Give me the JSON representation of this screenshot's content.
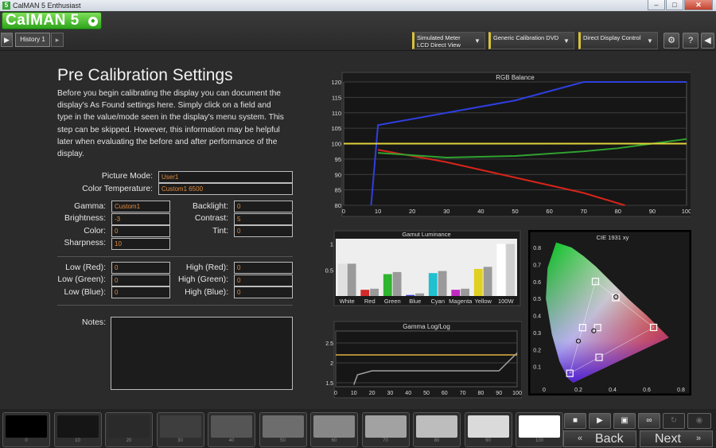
{
  "window": {
    "title": "CalMAN 5 Enthusiast",
    "icon_text": "5",
    "minimize": "–",
    "maximize": "□",
    "close": "✕"
  },
  "logo": {
    "text": "CalMAN 5",
    "mark": "●"
  },
  "tabs": {
    "back_glyph": "▶",
    "history": "History 1",
    "add_glyph": "▸"
  },
  "dropdowns": [
    {
      "line1": "Simulated Meter",
      "line2": "LCD Direct View"
    },
    {
      "line1": "Generic Calibration DVD",
      "line2": ""
    },
    {
      "line1": "Direct Display Control",
      "line2": ""
    }
  ],
  "toolbar": {
    "settings_glyph": "⚙",
    "help_glyph": "?",
    "collapse_glyph": "◀",
    "chev": "▼"
  },
  "page": {
    "title": "Pre Calibration Settings",
    "description": "Before you begin calibrating the display you can document the display's As Found settings here. Simply click on a field and type in the value/mode seen in the display's menu system. This step can be skipped. However, this information may be helpful later when evaluating the before and after performance of the display."
  },
  "fields": {
    "picture_mode": {
      "label": "Picture Mode:",
      "value": "User1"
    },
    "color_temperature": {
      "label": "Color Temperature:",
      "value": "Custom1 6500"
    },
    "gamma": {
      "label": "Gamma:",
      "value": "Custom1"
    },
    "brightness": {
      "label": "Brightness:",
      "value": "-3"
    },
    "color": {
      "label": "Color:",
      "value": "0"
    },
    "sharpness": {
      "label": "Sharpness:",
      "value": "10"
    },
    "backlight": {
      "label": "Backlight:",
      "value": "0"
    },
    "contrast": {
      "label": "Contrast:",
      "value": "5"
    },
    "tint": {
      "label": "Tint:",
      "value": "0"
    },
    "low_red": {
      "label": "Low (Red):",
      "value": "0"
    },
    "low_green": {
      "label": "Low (Green):",
      "value": "0"
    },
    "low_blue": {
      "label": "Low (Blue):",
      "value": "0"
    },
    "high_red": {
      "label": "High (Red):",
      "value": "0"
    },
    "high_green": {
      "label": "High (Green):",
      "value": "0"
    },
    "high_blue": {
      "label": "High (Blue):",
      "value": "0"
    },
    "notes": {
      "label": "Notes:",
      "value": ""
    }
  },
  "chart_data": [
    {
      "type": "line",
      "title": "RGB Balance",
      "xlim": [
        0,
        100
      ],
      "ylim": [
        80,
        120
      ],
      "x_ticks": [
        0,
        10,
        20,
        30,
        40,
        50,
        60,
        70,
        80,
        90,
        100
      ],
      "y_ticks": [
        80,
        85,
        90,
        95,
        100,
        105,
        110,
        115,
        120
      ],
      "grid": true,
      "series": [
        {
          "color": "#2f3fe0",
          "x": [
            8,
            10,
            30,
            50,
            70,
            100
          ],
          "y": [
            80,
            106,
            110,
            114,
            120,
            120
          ]
        },
        {
          "color": "#d8241a",
          "x": [
            10,
            30,
            50,
            70,
            82
          ],
          "y": [
            98,
            94,
            89,
            84,
            80
          ]
        },
        {
          "color": "#2fa42f",
          "x": [
            10,
            30,
            50,
            70,
            80,
            90,
            100
          ],
          "y": [
            97,
            95.5,
            96,
            97.5,
            98.5,
            100,
            101.5
          ]
        },
        {
          "color": "#e0d23a",
          "x": [
            0,
            100
          ],
          "y": [
            100,
            100
          ]
        }
      ]
    },
    {
      "type": "bar",
      "title": "Gamut Luminance",
      "categories": [
        "White",
        "Red",
        "Green",
        "Blue",
        "Cyan",
        "Magenta",
        "Yellow",
        "100W"
      ],
      "ylim": [
        0,
        1.1
      ],
      "y_ticks": [
        0.5,
        1
      ],
      "y_tick_labels": [
        "0.5",
        "1"
      ],
      "series": [
        {
          "values": [
            0.62,
            0.12,
            0.42,
            0.02,
            0.44,
            0.12,
            0.52,
            1.0
          ],
          "colors": [
            "#e0e0e0",
            "#d22a2a",
            "#2fb52f",
            "#3a3ad0",
            "#20c0d0",
            "#c02ac0",
            "#e0d020",
            "#ffffff"
          ]
        },
        {
          "values": [
            0.62,
            0.14,
            0.46,
            0.05,
            0.48,
            0.14,
            0.56,
            1.0
          ],
          "colors": [
            "#9a9a9a",
            "#9a9a9a",
            "#9a9a9a",
            "#9a9a9a",
            "#9a9a9a",
            "#9a9a9a",
            "#9a9a9a",
            "#cfcfcf"
          ]
        }
      ]
    },
    {
      "type": "line",
      "title": "Gamma Log/Log",
      "xlim": [
        0,
        100
      ],
      "ylim": [
        1.4,
        2.8
      ],
      "x_ticks": [
        0,
        10,
        20,
        30,
        40,
        50,
        60,
        70,
        80,
        90,
        100
      ],
      "y_ticks": [
        1.5,
        2,
        2.5
      ],
      "y_tick_labels": [
        "1.5",
        "2",
        "2.5"
      ],
      "grid": true,
      "series": [
        {
          "color": "#e0b040",
          "x": [
            0,
            100
          ],
          "y": [
            2.2,
            2.2
          ]
        },
        {
          "color": "#a0a0a0",
          "x": [
            10,
            12,
            20,
            40,
            60,
            80,
            90,
            100
          ],
          "y": [
            1.45,
            1.7,
            1.8,
            1.8,
            1.8,
            1.8,
            1.8,
            2.25
          ]
        }
      ]
    },
    {
      "type": "scatter",
      "title": "CIE 1931 xy",
      "xlim": [
        0,
        0.8
      ],
      "ylim": [
        0,
        0.8
      ],
      "x_ticks": [
        0,
        0.2,
        0.4,
        0.6,
        0.8
      ],
      "y_ticks": [
        0.1,
        0.2,
        0.3,
        0.4,
        0.5,
        0.6,
        0.7,
        0.8
      ],
      "gamut_triangle": [
        [
          0.64,
          0.33
        ],
        [
          0.3,
          0.6
        ],
        [
          0.15,
          0.06
        ]
      ],
      "targets": [
        [
          0.64,
          0.33
        ],
        [
          0.3,
          0.6
        ],
        [
          0.15,
          0.06
        ],
        [
          0.225,
          0.329
        ],
        [
          0.321,
          0.154
        ],
        [
          0.419,
          0.505
        ],
        [
          0.3127,
          0.329
        ]
      ],
      "measured": [
        [
          0.29,
          0.31
        ],
        [
          0.42,
          0.51
        ],
        [
          0.2,
          0.25
        ]
      ]
    }
  ],
  "swatches": [
    {
      "label": "0",
      "color": "#000000"
    },
    {
      "label": "10",
      "color": "#151515"
    },
    {
      "label": "20",
      "color": "#2a2a2a"
    },
    {
      "label": "30",
      "color": "#3e3e3e"
    },
    {
      "label": "40",
      "color": "#555555"
    },
    {
      "label": "50",
      "color": "#6d6d6d"
    },
    {
      "label": "60",
      "color": "#878787"
    },
    {
      "label": "70",
      "color": "#a2a2a2"
    },
    {
      "label": "80",
      "color": "#bdbdbd"
    },
    {
      "label": "90",
      "color": "#dadada"
    },
    {
      "label": "100",
      "color": "#ffffff"
    }
  ],
  "controls": {
    "stop": "■",
    "play": "▶",
    "save": "▣",
    "loop": "∞",
    "refresh": "↻",
    "settings": "◉"
  },
  "nav": {
    "back": "Back",
    "next": "Next",
    "back_glyph": "«",
    "next_glyph": "»"
  }
}
